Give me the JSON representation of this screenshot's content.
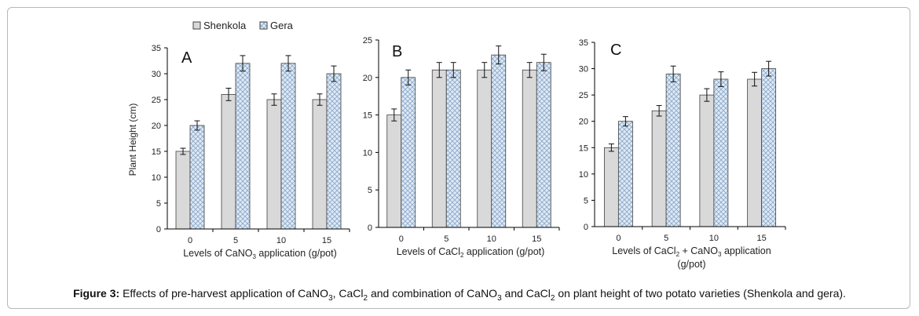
{
  "legend": {
    "series": [
      {
        "name": "Shenkola",
        "pattern": "solid"
      },
      {
        "name": "Gera",
        "pattern": "hatch"
      }
    ]
  },
  "y_axis_label": "Plant Height (cm)",
  "caption": {
    "label": "Figure 3:",
    "parts": [
      "Effects of pre-harvest application of CaNO",
      "3",
      ", CaCl",
      "2",
      " and combination of CaNO",
      "3",
      " and CaCl",
      "2",
      " on plant height of two potato varieties (Shenkola and gera)."
    ]
  },
  "colors": {
    "shenkola_fill": "#d9d9d9",
    "gera_fill": "#dfeaf7",
    "gera_hatch": "#8da9c8",
    "bar_stroke": "#404040",
    "axis": "#000000",
    "frame": "#b8b8b8"
  },
  "chart_data": [
    {
      "type": "bar",
      "panel": "A",
      "categories": [
        "0",
        "5",
        "10",
        "15"
      ],
      "xlabel_parts": [
        "Levels of CaNO",
        "3",
        " application (g/pot)"
      ],
      "ylabel": "Plant Height (cm)",
      "ylim": [
        0,
        35
      ],
      "yticks": [
        0,
        5,
        10,
        15,
        20,
        25,
        30,
        35
      ],
      "series": [
        {
          "name": "Shenkola",
          "values": [
            15,
            26,
            25,
            25
          ],
          "errors": [
            0.6,
            1.2,
            1.1,
            1.1
          ]
        },
        {
          "name": "Gera",
          "values": [
            20,
            32,
            32,
            30
          ],
          "errors": [
            0.9,
            1.5,
            1.5,
            1.5
          ]
        }
      ]
    },
    {
      "type": "bar",
      "panel": "B",
      "categories": [
        "0",
        "5",
        "10",
        "15"
      ],
      "xlabel_parts": [
        "Levels of CaCl",
        "2",
        " application (g/pot)"
      ],
      "ylabel": "",
      "ylim": [
        0,
        25
      ],
      "yticks": [
        0,
        5,
        10,
        15,
        20,
        25
      ],
      "series": [
        {
          "name": "Shenkola",
          "values": [
            15,
            21,
            21,
            21
          ],
          "errors": [
            0.8,
            1.0,
            1.0,
            1.0
          ]
        },
        {
          "name": "Gera",
          "values": [
            20,
            21,
            23,
            22
          ],
          "errors": [
            1.0,
            1.0,
            1.2,
            1.1
          ]
        }
      ]
    },
    {
      "type": "bar",
      "panel": "C",
      "categories": [
        "0",
        "5",
        "10",
        "15"
      ],
      "xlabel_parts": [
        "Levels of CaCl",
        "2",
        " + CaNO",
        "3",
        " application"
      ],
      "xlabel_line2": "(g/pot)",
      "ylabel": "",
      "ylim": [
        0,
        35
      ],
      "yticks": [
        0,
        5,
        10,
        15,
        20,
        25,
        30,
        35
      ],
      "series": [
        {
          "name": "Shenkola",
          "values": [
            15,
            22,
            25,
            28
          ],
          "errors": [
            0.7,
            1.0,
            1.2,
            1.3
          ]
        },
        {
          "name": "Gera",
          "values": [
            20,
            29,
            28,
            30
          ],
          "errors": [
            0.9,
            1.5,
            1.4,
            1.4
          ]
        }
      ]
    }
  ]
}
